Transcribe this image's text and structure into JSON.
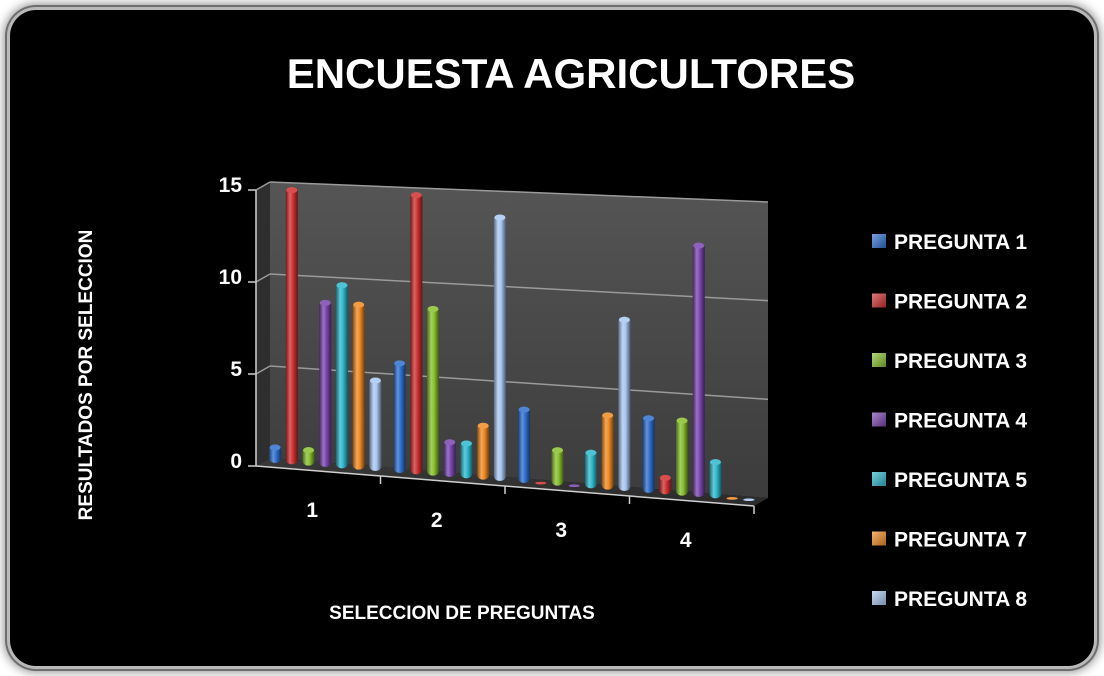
{
  "colors": {
    "background": "#000000",
    "plot_wall": "#4a4a4a",
    "gridline": "#9a9a9a",
    "text": "#ffffff"
  },
  "chart_data": {
    "type": "bar",
    "style": "3d-clustered-column",
    "title": "ENCUESTA AGRICULTORES",
    "xlabel": "SELECCION DE PREGUNTAS",
    "ylabel": "RESULTADOS POR SELECCION",
    "categories": [
      "1",
      "2",
      "3",
      "4"
    ],
    "yticks": [
      "0",
      "5",
      "10",
      "15"
    ],
    "ylim": [
      0,
      15
    ],
    "grid": true,
    "legend_position": "right",
    "series": [
      {
        "name": "PREGUNTA 1",
        "color": "#2f6fcf",
        "values": [
          1,
          6,
          4,
          4
        ]
      },
      {
        "name": "PREGUNTA 2",
        "color": "#d03030",
        "values": [
          15,
          15,
          0,
          1
        ]
      },
      {
        "name": "PREGUNTA 3",
        "color": "#88c02e",
        "values": [
          1,
          9,
          2,
          4
        ]
      },
      {
        "name": "PREGUNTA 4",
        "color": "#7a45b0",
        "values": [
          9,
          2,
          0,
          13
        ]
      },
      {
        "name": "PREGUNTA 5",
        "color": "#2fb8cc",
        "values": [
          10,
          2,
          2,
          2
        ]
      },
      {
        "name": "PREGUNTA 7",
        "color": "#f08a22",
        "values": [
          9,
          3,
          4,
          0
        ]
      },
      {
        "name": "PREGUNTA 8",
        "color": "#a9c6f2",
        "values": [
          5,
          14,
          9,
          0
        ]
      }
    ]
  }
}
